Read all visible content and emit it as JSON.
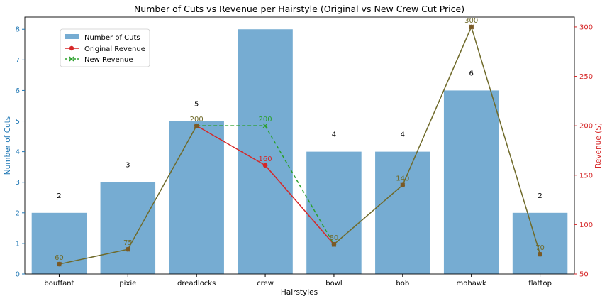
{
  "chart_data": {
    "type": "bar",
    "title": "Number of Cuts vs Revenue per Hairstyle (Original vs New Crew Cut Price)",
    "xlabel": "Hairstyles",
    "ylabel_left": "Number of Cuts",
    "ylabel_right": "Revenue ($)",
    "categories": [
      "bouffant",
      "pixie",
      "dreadlocks",
      "crew",
      "bowl",
      "bob",
      "mohawk",
      "flattop"
    ],
    "ylim_left": [
      0,
      8.4
    ],
    "ylim_right": [
      50,
      310
    ],
    "yticks_left": [
      0,
      1,
      2,
      3,
      4,
      5,
      6,
      7,
      8
    ],
    "yticks_right": [
      50,
      100,
      150,
      200,
      250,
      300
    ],
    "legend_position": "upper-left",
    "series": [
      {
        "name": "Number of Cuts",
        "kind": "bar",
        "axis": "left",
        "color": "#76acd2",
        "values": [
          2,
          3,
          5,
          8,
          4,
          4,
          6,
          2
        ],
        "labels": [
          "2",
          "3",
          "5",
          "",
          "4",
          "4",
          "6",
          "2"
        ]
      },
      {
        "name": "Original Revenue",
        "kind": "line",
        "axis": "right",
        "color": "#d62728",
        "marker": "o",
        "values": [
          60,
          75,
          200,
          160,
          80,
          140,
          300,
          70
        ],
        "labels": [
          "",
          "",
          "",
          "160",
          "",
          "",
          "",
          ""
        ]
      },
      {
        "name": "New Revenue",
        "kind": "line",
        "axis": "right",
        "color": "#2ca02c",
        "dash": true,
        "marker": "x",
        "values": [
          60,
          75,
          200,
          200,
          80,
          140,
          300,
          70
        ],
        "labels": [
          "60",
          "75",
          "200",
          "200",
          "80",
          "140",
          "300",
          "70"
        ]
      }
    ],
    "colors": {
      "left_axis": "#1f77b4",
      "right_axis": "#d62728",
      "overlap_marker": "#7a5a26",
      "overlap_line": "#6f6a2a",
      "spine": "#000000"
    }
  }
}
